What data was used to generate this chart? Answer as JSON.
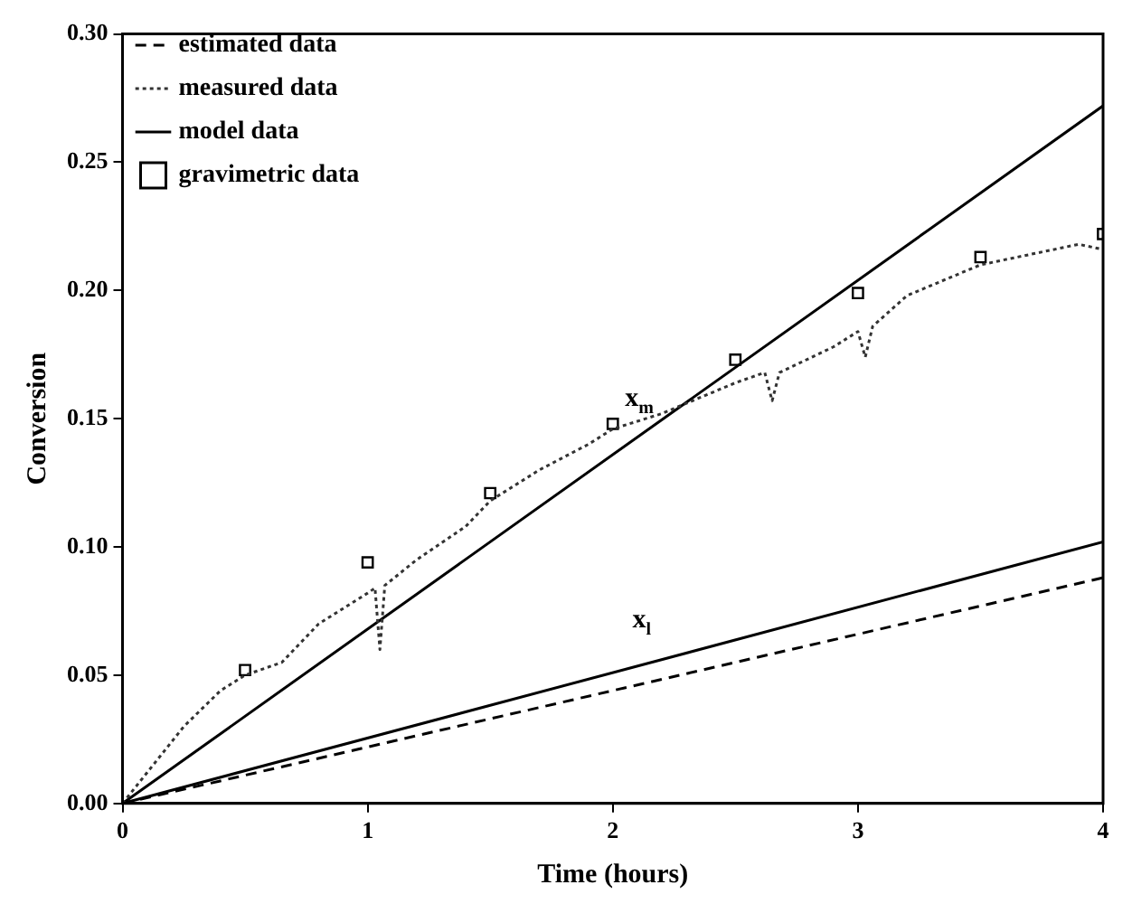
{
  "chart_data": {
    "type": "line",
    "xlabel": "Time (hours)",
    "ylabel": "Conversion",
    "xlim": [
      0,
      4
    ],
    "xticks": [
      0,
      1,
      2,
      3,
      4
    ],
    "ylim": [
      0,
      0.3
    ],
    "yticks": [
      {
        "value": 0,
        "label": "0.00"
      },
      {
        "value": 0.05,
        "label": "0.05"
      },
      {
        "value": 0.1,
        "label": "0.10"
      },
      {
        "value": 0.15,
        "label": "0.15"
      },
      {
        "value": 0.2,
        "label": "0.20"
      },
      {
        "value": 0.25,
        "label": "0.25"
      },
      {
        "value": 0.3,
        "label": "0.30"
      }
    ],
    "grid": false,
    "legend": "top left",
    "series": [
      {
        "name": "estimated data",
        "type": "line",
        "line_style": "dashed",
        "color": "#000000",
        "x": [
          0,
          4
        ],
        "values": [
          0,
          0.088
        ]
      },
      {
        "name": "measured data",
        "line_style": "dotted",
        "color": "#333333",
        "x": [
          0,
          0.1,
          0.25,
          0.4,
          0.5,
          0.65,
          0.8,
          1.0,
          1.03,
          1.05,
          1.07,
          1.2,
          1.4,
          1.5,
          1.7,
          1.9,
          2.0,
          2.2,
          2.5,
          2.62,
          2.65,
          2.68,
          2.9,
          3.0,
          3.03,
          3.06,
          3.2,
          3.5,
          3.7,
          3.9,
          4.0
        ],
        "values": [
          0,
          0.012,
          0.03,
          0.044,
          0.05,
          0.055,
          0.07,
          0.082,
          0.084,
          0.06,
          0.085,
          0.095,
          0.108,
          0.118,
          0.13,
          0.14,
          0.146,
          0.152,
          0.164,
          0.168,
          0.157,
          0.168,
          0.178,
          0.184,
          0.174,
          0.186,
          0.198,
          0.21,
          0.214,
          0.218,
          0.216
        ]
      },
      {
        "name": "model data",
        "line_style": "solid",
        "color": "#000000",
        "x": [
          0,
          4
        ],
        "values": [
          0,
          0.272
        ]
      },
      {
        "line_style": "solid",
        "color": "#000000",
        "x": [
          0,
          4
        ],
        "values": [
          0,
          0.102
        ]
      },
      {
        "name": "gravimetric data",
        "type": "scatter",
        "marker": "square",
        "color": "#000000",
        "x": [
          0.5,
          1.0,
          1.5,
          2.0,
          2.5,
          3.0,
          3.5,
          4.0
        ],
        "values": [
          0.052,
          0.094,
          0.121,
          0.148,
          0.173,
          0.199,
          0.213,
          0.222
        ]
      }
    ],
    "annotations": [
      {
        "text": "x$_{m}$",
        "x": 2.05,
        "y": 0.1394
      },
      {
        "text": "x$_{l}$",
        "x": 2.08,
        "y": 0.053
      }
    ]
  }
}
